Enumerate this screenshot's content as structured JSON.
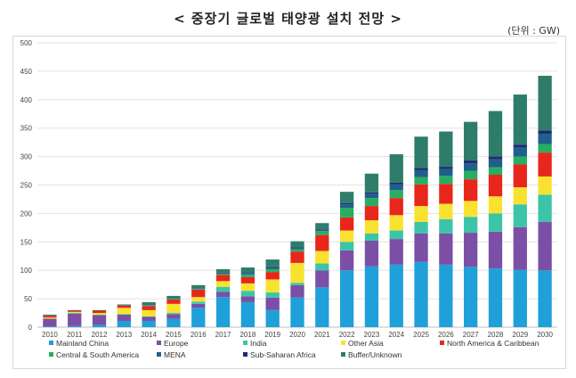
{
  "title": "< 중장기 글로벌 태양광 설치 전망 >",
  "unit": "(단위 : GW)",
  "chart_data": {
    "type": "bar",
    "stacked": true,
    "categories": [
      "2010",
      "2011",
      "2012",
      "2013",
      "2014",
      "2015",
      "2016",
      "2017",
      "2018",
      "2019",
      "2020",
      "2021",
      "2022",
      "2023",
      "2024",
      "2025",
      "2026",
      "2027",
      "2028",
      "2029",
      "2030"
    ],
    "ylim": [
      0,
      500
    ],
    "yticks": [
      0,
      50,
      100,
      150,
      200,
      250,
      300,
      350,
      400,
      450,
      500
    ],
    "grid": true,
    "legend_position": "bottom",
    "series": [
      {
        "name": "Mainland China",
        "color": "#1FA0D8",
        "values": [
          1,
          2,
          4,
          11,
          11,
          15,
          34,
          53,
          44,
          30,
          52,
          70,
          100,
          107,
          110,
          115,
          110,
          106,
          103,
          101,
          100
        ]
      },
      {
        "name": "Europe",
        "color": "#7B4FA6",
        "values": [
          14,
          22,
          17,
          11,
          7,
          8,
          7,
          9,
          10,
          22,
          22,
          30,
          35,
          45,
          45,
          50,
          55,
          60,
          65,
          75,
          85
        ]
      },
      {
        "name": "India",
        "color": "#3CC4A8",
        "values": [
          0,
          1,
          1,
          1,
          1,
          2,
          4,
          9,
          10,
          9,
          4,
          12,
          15,
          13,
          15,
          20,
          25,
          28,
          32,
          40,
          48
        ]
      },
      {
        "name": "Other Asia",
        "color": "#F9E22F",
        "values": [
          2,
          2,
          3,
          11,
          11,
          16,
          8,
          10,
          13,
          23,
          35,
          22,
          20,
          23,
          27,
          28,
          27,
          28,
          30,
          30,
          32
        ]
      },
      {
        "name": "North America & Caribbean",
        "color": "#E8261C",
        "values": [
          3,
          2,
          4,
          4,
          7,
          8,
          13,
          11,
          11,
          13,
          20,
          28,
          23,
          25,
          30,
          38,
          35,
          38,
          38,
          40,
          42
        ]
      },
      {
        "name": "Central & South America",
        "color": "#27AE60",
        "values": [
          0,
          0,
          0,
          0,
          1,
          1,
          1,
          2,
          5,
          5,
          4,
          7,
          17,
          14,
          14,
          13,
          14,
          15,
          13,
          14,
          15
        ]
      },
      {
        "name": "MENA",
        "color": "#1F5F8B",
        "values": [
          0,
          0,
          0,
          0,
          1,
          1,
          1,
          1,
          3,
          4,
          3,
          3,
          6,
          8,
          10,
          12,
          12,
          13,
          14,
          16,
          18
        ]
      },
      {
        "name": "Sub-Saharan Africa",
        "color": "#1E2A6E",
        "values": [
          0,
          0,
          0,
          0,
          0,
          0,
          0,
          1,
          1,
          1,
          1,
          1,
          2,
          2,
          3,
          4,
          4,
          5,
          5,
          5,
          6
        ]
      },
      {
        "name": "Buffer/Unknown",
        "color": "#2E7D6B",
        "values": [
          2,
          1,
          1,
          2,
          5,
          4,
          6,
          6,
          8,
          12,
          10,
          10,
          20,
          33,
          50,
          55,
          62,
          68,
          80,
          88,
          96
        ]
      }
    ]
  }
}
